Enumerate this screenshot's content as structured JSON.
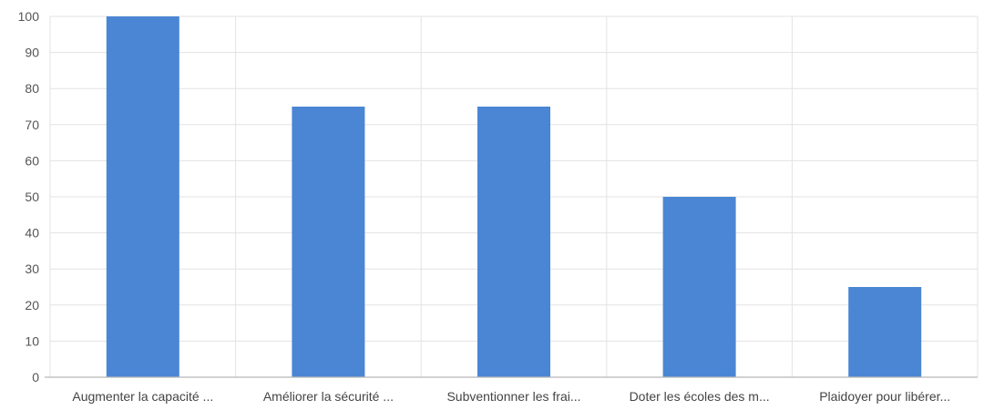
{
  "chart_data": {
    "type": "bar",
    "categories": [
      "Augmenter la capacité ...",
      "Améliorer la sécurité ...",
      "Subventionner les frai...",
      "Doter les écoles des m...",
      "Plaidoyer pour libérer..."
    ],
    "values": [
      100,
      75,
      75,
      50,
      25
    ],
    "title": "",
    "xlabel": "",
    "ylabel": "",
    "ylim": [
      0,
      100
    ],
    "yticks": [
      0,
      10,
      20,
      30,
      40,
      50,
      60,
      70,
      80,
      90,
      100
    ],
    "grid": true,
    "legend": "none",
    "bar_color": "#4a86d4",
    "grid_color": "#e3e3e3",
    "axis_color": "#b8b8b8"
  }
}
